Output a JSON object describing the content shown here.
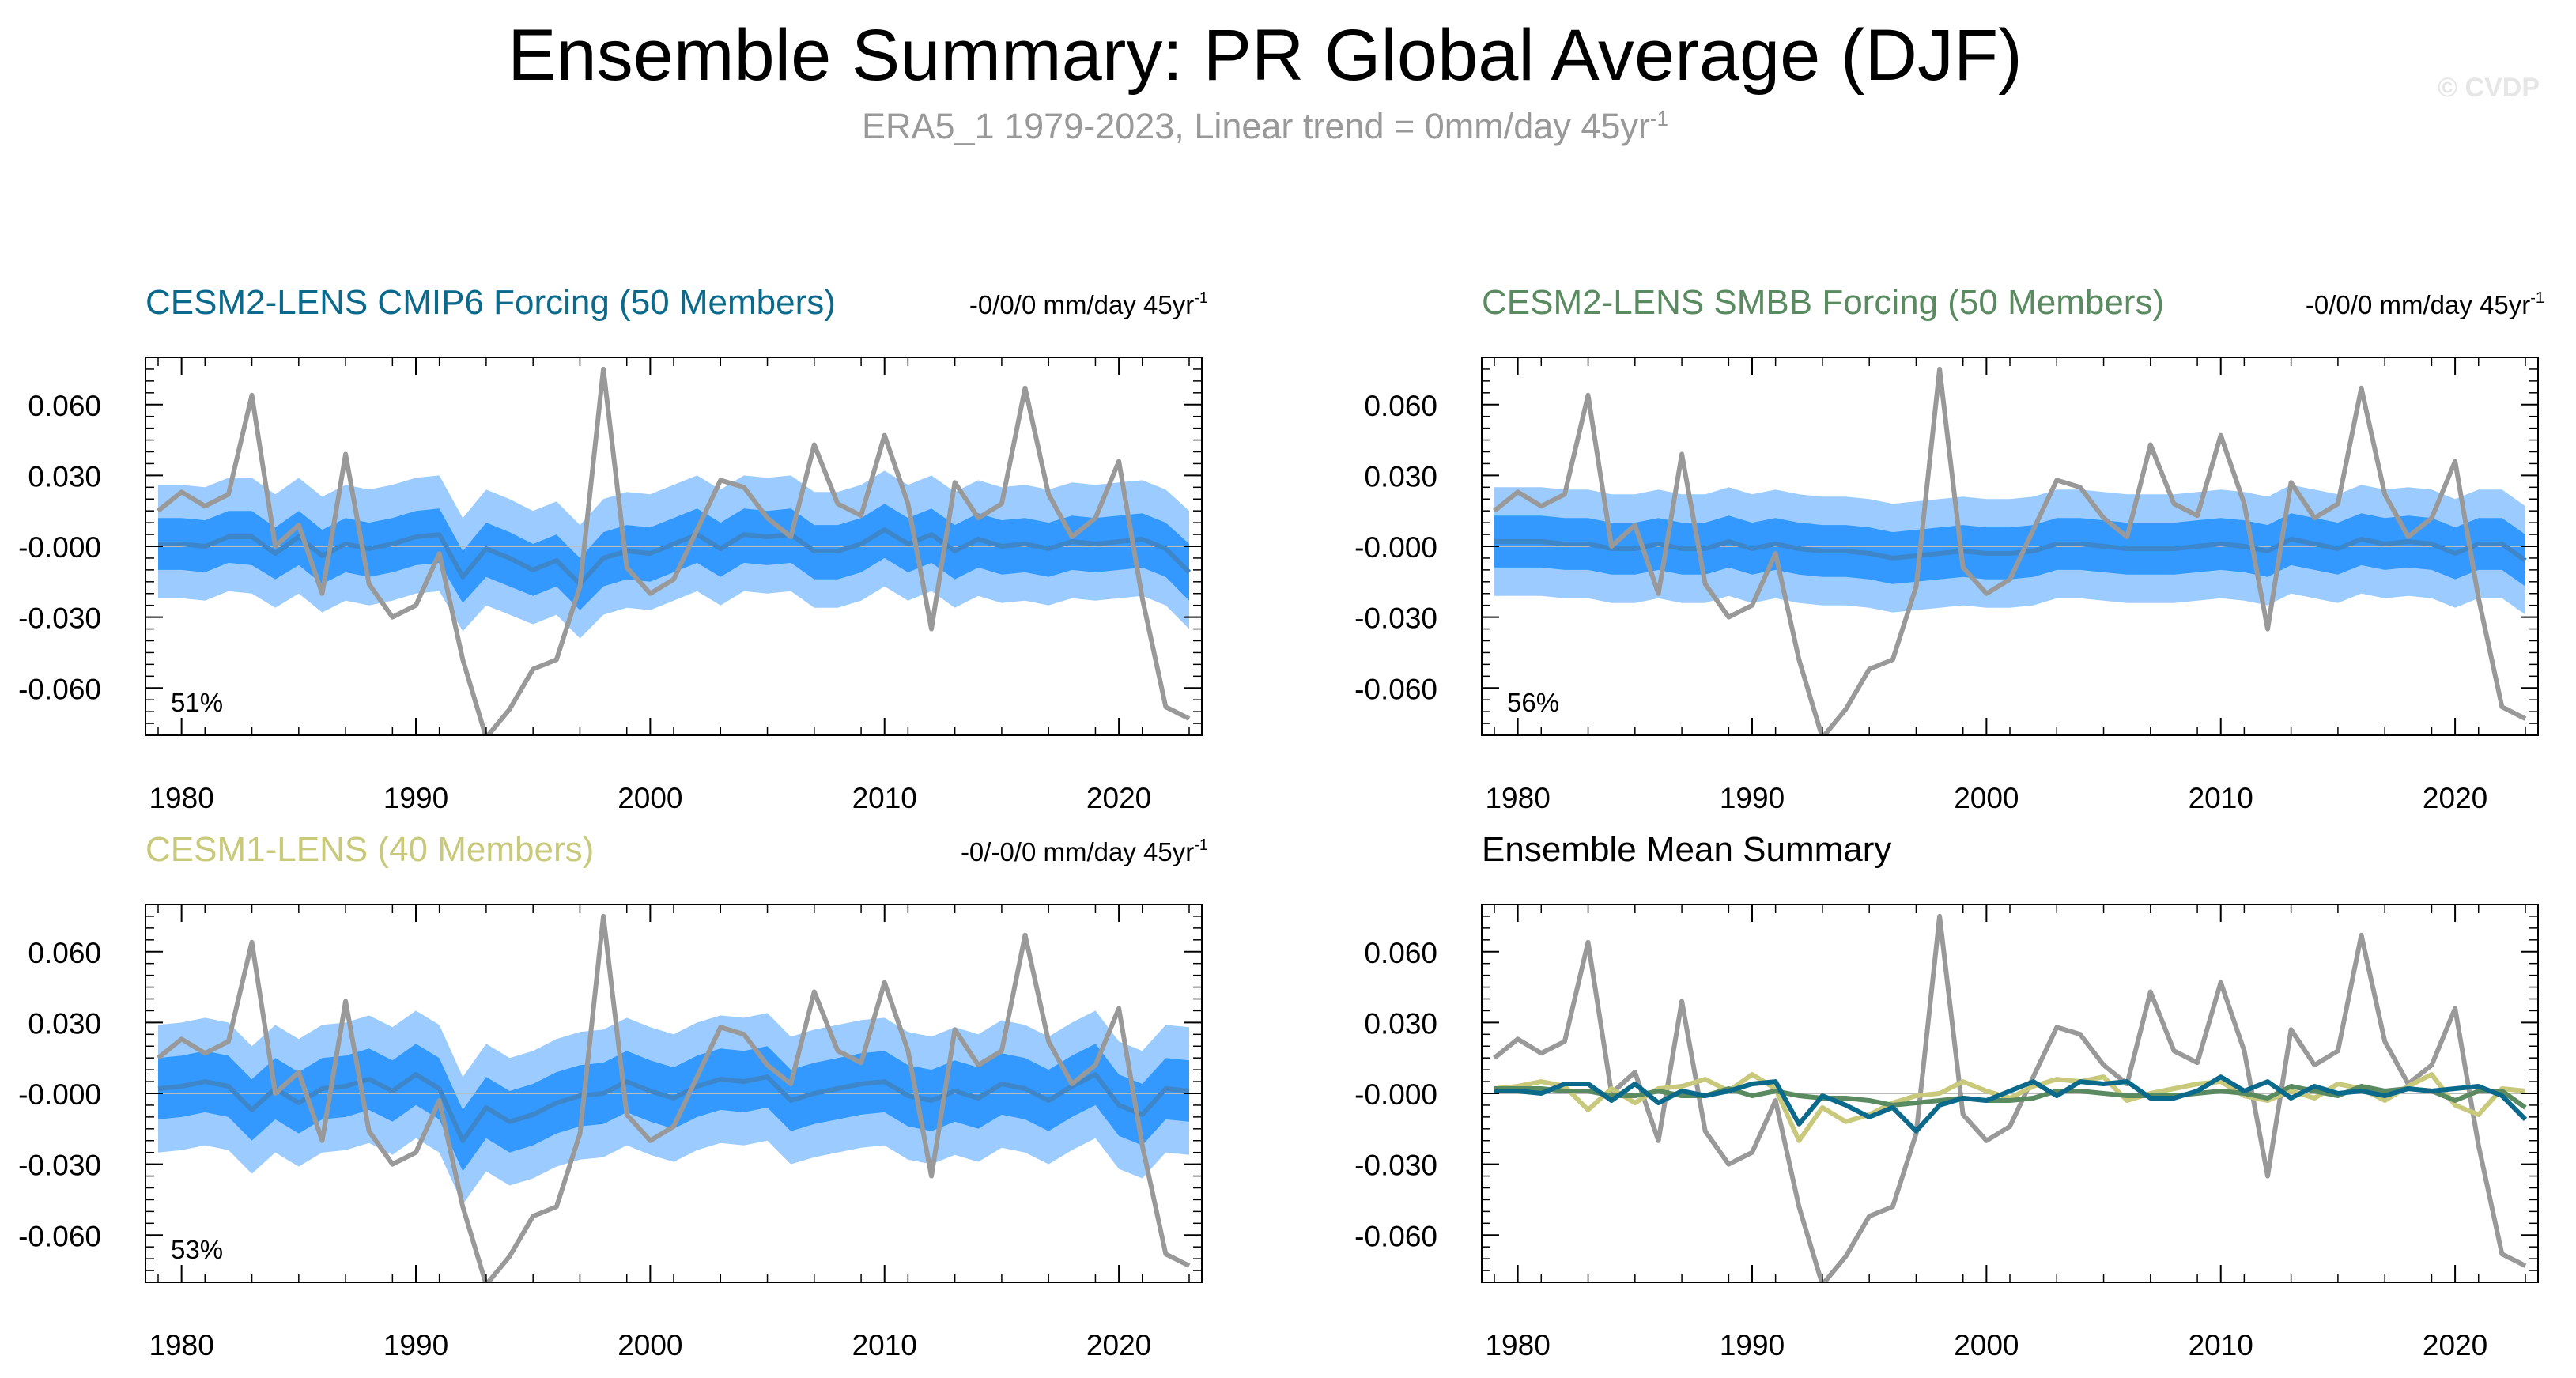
{
  "title": "Ensemble Summary: PR Global Average (DJF)",
  "subtitle": "ERA5_1 1979-2023, Linear trend = 0mm/day 45yr",
  "subtitle_sup": "-1",
  "watermark": "© CVDP",
  "colors": {
    "obs": "#999999",
    "band_outer": "#9cccff",
    "band_inner": "#3399ff",
    "cmip6": "#0b6a8c",
    "smbb": "#5a8a60",
    "lens1": "#c9c97c",
    "mean_line": "#3d86c9",
    "zero_line": "#bbbbbb"
  },
  "panels": [
    {
      "title": "CESM2-LENS CMIP6 Forcing (50 Members)",
      "title_color": "#0b6a8c",
      "trend": "-0/0/0 mm/day 45yr",
      "trend_sup": "-1",
      "pct": "51%"
    },
    {
      "title": "CESM2-LENS SMBB Forcing (50 Members)",
      "title_color": "#5a8a60",
      "trend": "-0/0/0 mm/day 45yr",
      "trend_sup": "-1",
      "pct": "56%"
    },
    {
      "title": "CESM1-LENS (40 Members)",
      "title_color": "#c9c97c",
      "trend": "-0/-0/0 mm/day 45yr",
      "trend_sup": "-1",
      "pct": "53%"
    },
    {
      "title": "Ensemble Mean Summary",
      "title_color": "#000000",
      "trend": "",
      "trend_sup": "",
      "pct": ""
    }
  ],
  "chart_data": {
    "type": "line",
    "x_ticklabels": [
      "1980",
      "1990",
      "2000",
      "2010",
      "2020"
    ],
    "y_ticklabels": [
      "0.060",
      "0.030",
      "-0.000",
      "-0.030",
      "-0.060"
    ],
    "xlim": [
      1979,
      2023
    ],
    "ylim": [
      -0.08,
      0.08
    ],
    "yticks": [
      0.06,
      0.03,
      0.0,
      -0.03,
      -0.06
    ],
    "xticks": [
      1980,
      1990,
      2000,
      2010,
      2020
    ],
    "grid": false,
    "x": [
      1979,
      1980,
      1981,
      1982,
      1983,
      1984,
      1985,
      1986,
      1987,
      1988,
      1989,
      1990,
      1991,
      1992,
      1993,
      1994,
      1995,
      1996,
      1997,
      1998,
      1999,
      2000,
      2001,
      2002,
      2003,
      2004,
      2005,
      2006,
      2007,
      2008,
      2009,
      2010,
      2011,
      2012,
      2013,
      2014,
      2015,
      2016,
      2017,
      2018,
      2019,
      2020,
      2021,
      2022,
      2023
    ],
    "observed": {
      "name": "ERA5_1",
      "values": [
        0.015,
        0.023,
        0.017,
        0.022,
        0.064,
        0.0,
        0.009,
        -0.02,
        0.039,
        -0.016,
        -0.03,
        -0.025,
        -0.003,
        -0.048,
        -0.081,
        -0.069,
        -0.052,
        -0.048,
        -0.017,
        0.075,
        -0.009,
        -0.02,
        -0.014,
        0.007,
        0.028,
        0.025,
        0.012,
        0.004,
        0.043,
        0.018,
        0.013,
        0.047,
        0.018,
        -0.035,
        0.027,
        0.012,
        0.018,
        0.067,
        0.022,
        0.004,
        0.012,
        0.036,
        -0.022,
        -0.068,
        -0.073
      ]
    },
    "ensemble_means": [
      {
        "name": "CESM2-LENS CMIP6 Forcing",
        "values": [
          0.001,
          0.001,
          0.0,
          0.004,
          0.004,
          -0.003,
          0.004,
          -0.004,
          0.001,
          -0.001,
          0.001,
          0.004,
          0.005,
          -0.013,
          -0.001,
          -0.005,
          -0.01,
          -0.006,
          -0.016,
          -0.005,
          -0.002,
          -0.003,
          0.001,
          0.005,
          -0.001,
          0.005,
          0.004,
          0.005,
          -0.002,
          -0.002,
          0.001,
          0.007,
          0.001,
          0.005,
          -0.002,
          0.003,
          0.0,
          0.001,
          -0.001,
          0.002,
          0.001,
          0.002,
          0.003,
          -0.001,
          -0.011
        ]
      },
      {
        "name": "CESM2-LENS SMBB Forcing",
        "values": [
          0.002,
          0.002,
          0.002,
          0.001,
          0.001,
          -0.001,
          -0.001,
          0.001,
          -0.001,
          -0.001,
          0.002,
          -0.001,
          0.001,
          -0.001,
          -0.002,
          -0.002,
          -0.003,
          -0.005,
          -0.004,
          -0.003,
          -0.002,
          -0.003,
          -0.003,
          -0.002,
          0.001,
          0.001,
          0.0,
          -0.001,
          -0.001,
          -0.001,
          0.0,
          0.001,
          0.0,
          -0.002,
          0.003,
          0.001,
          -0.001,
          0.003,
          0.001,
          0.002,
          0.001,
          -0.003,
          0.001,
          0.001,
          -0.006
        ]
      },
      {
        "name": "CESM1-LENS",
        "values": [
          0.002,
          0.003,
          0.005,
          0.003,
          -0.007,
          0.002,
          -0.004,
          0.002,
          0.003,
          0.006,
          0.001,
          0.008,
          0.002,
          -0.02,
          -0.006,
          -0.012,
          -0.009,
          -0.004,
          -0.001,
          0.0,
          0.005,
          0.001,
          -0.002,
          0.003,
          0.006,
          0.005,
          0.007,
          -0.003,
          0.0,
          0.002,
          0.004,
          0.005,
          -0.001,
          -0.003,
          0.001,
          -0.002,
          0.004,
          0.002,
          -0.003,
          0.003,
          0.008,
          -0.005,
          -0.009,
          0.002,
          0.001
        ]
      }
    ],
    "ensemble_spread": [
      {
        "name": "CESM2-LENS CMIP6 Forcing",
        "p10": [
          -0.01,
          -0.01,
          -0.011,
          -0.007,
          -0.008,
          -0.014,
          -0.008,
          -0.016,
          -0.011,
          -0.013,
          -0.011,
          -0.008,
          -0.007,
          -0.024,
          -0.013,
          -0.017,
          -0.021,
          -0.017,
          -0.027,
          -0.017,
          -0.014,
          -0.015,
          -0.011,
          -0.007,
          -0.013,
          -0.007,
          -0.008,
          -0.007,
          -0.014,
          -0.014,
          -0.011,
          -0.005,
          -0.011,
          -0.007,
          -0.014,
          -0.009,
          -0.012,
          -0.011,
          -0.013,
          -0.01,
          -0.011,
          -0.01,
          -0.009,
          -0.013,
          -0.023
        ],
        "p90": [
          0.012,
          0.012,
          0.011,
          0.015,
          0.015,
          0.008,
          0.015,
          0.007,
          0.012,
          0.01,
          0.012,
          0.015,
          0.016,
          -0.002,
          0.01,
          0.006,
          0.001,
          0.005,
          -0.005,
          0.006,
          0.009,
          0.008,
          0.012,
          0.016,
          0.01,
          0.016,
          0.015,
          0.016,
          0.009,
          0.009,
          0.012,
          0.018,
          0.012,
          0.016,
          0.009,
          0.014,
          0.011,
          0.012,
          0.01,
          0.013,
          0.012,
          0.013,
          0.014,
          0.01,
          0.001
        ],
        "min": [
          -0.022,
          -0.022,
          -0.023,
          -0.019,
          -0.02,
          -0.026,
          -0.02,
          -0.028,
          -0.023,
          -0.025,
          -0.023,
          -0.02,
          -0.019,
          -0.036,
          -0.025,
          -0.029,
          -0.033,
          -0.029,
          -0.039,
          -0.029,
          -0.026,
          -0.027,
          -0.023,
          -0.019,
          -0.025,
          -0.019,
          -0.02,
          -0.019,
          -0.026,
          -0.026,
          -0.023,
          -0.017,
          -0.023,
          -0.019,
          -0.026,
          -0.021,
          -0.024,
          -0.023,
          -0.025,
          -0.022,
          -0.023,
          -0.022,
          -0.021,
          -0.025,
          -0.035
        ],
        "max": [
          0.026,
          0.026,
          0.025,
          0.029,
          0.029,
          0.022,
          0.029,
          0.021,
          0.026,
          0.024,
          0.026,
          0.029,
          0.03,
          0.012,
          0.024,
          0.02,
          0.015,
          0.019,
          0.009,
          0.02,
          0.023,
          0.022,
          0.026,
          0.03,
          0.024,
          0.03,
          0.029,
          0.03,
          0.023,
          0.023,
          0.026,
          0.032,
          0.026,
          0.03,
          0.023,
          0.028,
          0.025,
          0.026,
          0.024,
          0.027,
          0.026,
          0.027,
          0.028,
          0.024,
          0.015
        ]
      },
      {
        "name": "CESM2-LENS SMBB Forcing",
        "p10": [
          -0.009,
          -0.009,
          -0.009,
          -0.01,
          -0.01,
          -0.012,
          -0.012,
          -0.01,
          -0.012,
          -0.012,
          -0.009,
          -0.012,
          -0.01,
          -0.012,
          -0.013,
          -0.013,
          -0.014,
          -0.016,
          -0.015,
          -0.014,
          -0.013,
          -0.014,
          -0.014,
          -0.013,
          -0.01,
          -0.01,
          -0.011,
          -0.012,
          -0.012,
          -0.012,
          -0.011,
          -0.01,
          -0.011,
          -0.013,
          -0.008,
          -0.01,
          -0.012,
          -0.008,
          -0.01,
          -0.009,
          -0.01,
          -0.014,
          -0.01,
          -0.01,
          -0.017
        ],
        "p90": [
          0.013,
          0.013,
          0.013,
          0.012,
          0.012,
          0.01,
          0.01,
          0.012,
          0.01,
          0.01,
          0.013,
          0.01,
          0.012,
          0.01,
          0.009,
          0.009,
          0.008,
          0.006,
          0.007,
          0.008,
          0.009,
          0.008,
          0.008,
          0.009,
          0.012,
          0.012,
          0.011,
          0.01,
          0.01,
          0.01,
          0.011,
          0.012,
          0.011,
          0.009,
          0.014,
          0.012,
          0.01,
          0.014,
          0.012,
          0.013,
          0.012,
          0.008,
          0.012,
          0.012,
          0.005
        ],
        "min": [
          -0.021,
          -0.021,
          -0.021,
          -0.022,
          -0.022,
          -0.024,
          -0.024,
          -0.022,
          -0.024,
          -0.024,
          -0.021,
          -0.024,
          -0.022,
          -0.024,
          -0.025,
          -0.025,
          -0.026,
          -0.028,
          -0.027,
          -0.026,
          -0.025,
          -0.026,
          -0.026,
          -0.025,
          -0.022,
          -0.022,
          -0.023,
          -0.024,
          -0.024,
          -0.024,
          -0.023,
          -0.022,
          -0.023,
          -0.025,
          -0.02,
          -0.022,
          -0.024,
          -0.02,
          -0.022,
          -0.021,
          -0.022,
          -0.026,
          -0.022,
          -0.022,
          -0.029
        ],
        "max": [
          0.025,
          0.025,
          0.025,
          0.024,
          0.024,
          0.022,
          0.022,
          0.024,
          0.022,
          0.022,
          0.025,
          0.022,
          0.024,
          0.022,
          0.021,
          0.021,
          0.02,
          0.018,
          0.019,
          0.02,
          0.021,
          0.02,
          0.02,
          0.021,
          0.024,
          0.024,
          0.023,
          0.022,
          0.022,
          0.022,
          0.023,
          0.024,
          0.023,
          0.021,
          0.026,
          0.024,
          0.022,
          0.026,
          0.024,
          0.025,
          0.024,
          0.02,
          0.024,
          0.024,
          0.017
        ]
      },
      {
        "name": "CESM1-LENS",
        "p10": [
          -0.011,
          -0.01,
          -0.008,
          -0.01,
          -0.02,
          -0.011,
          -0.017,
          -0.011,
          -0.01,
          -0.007,
          -0.012,
          -0.005,
          -0.011,
          -0.033,
          -0.019,
          -0.025,
          -0.022,
          -0.017,
          -0.014,
          -0.013,
          -0.008,
          -0.012,
          -0.015,
          -0.01,
          -0.007,
          -0.008,
          -0.006,
          -0.016,
          -0.013,
          -0.011,
          -0.009,
          -0.008,
          -0.014,
          -0.016,
          -0.012,
          -0.015,
          -0.009,
          -0.011,
          -0.016,
          -0.01,
          -0.005,
          -0.018,
          -0.022,
          -0.011,
          -0.012
        ],
        "p90": [
          0.015,
          0.016,
          0.018,
          0.016,
          0.006,
          0.015,
          0.009,
          0.015,
          0.016,
          0.019,
          0.014,
          0.021,
          0.015,
          -0.007,
          0.007,
          0.001,
          0.004,
          0.009,
          0.012,
          0.013,
          0.018,
          0.014,
          0.011,
          0.016,
          0.019,
          0.018,
          0.02,
          0.01,
          0.013,
          0.015,
          0.017,
          0.018,
          0.012,
          0.01,
          0.014,
          0.011,
          0.017,
          0.015,
          0.01,
          0.016,
          0.021,
          0.008,
          0.004,
          0.015,
          0.014
        ],
        "min": [
          -0.025,
          -0.024,
          -0.022,
          -0.024,
          -0.034,
          -0.025,
          -0.031,
          -0.025,
          -0.024,
          -0.021,
          -0.026,
          -0.019,
          -0.025,
          -0.047,
          -0.033,
          -0.039,
          -0.036,
          -0.031,
          -0.028,
          -0.027,
          -0.022,
          -0.026,
          -0.029,
          -0.024,
          -0.021,
          -0.022,
          -0.02,
          -0.03,
          -0.027,
          -0.025,
          -0.023,
          -0.022,
          -0.028,
          -0.03,
          -0.026,
          -0.029,
          -0.023,
          -0.025,
          -0.03,
          -0.024,
          -0.019,
          -0.032,
          -0.036,
          -0.025,
          -0.026
        ],
        "max": [
          0.029,
          0.03,
          0.032,
          0.03,
          0.02,
          0.029,
          0.023,
          0.029,
          0.03,
          0.033,
          0.028,
          0.035,
          0.029,
          0.007,
          0.021,
          0.015,
          0.018,
          0.023,
          0.026,
          0.027,
          0.032,
          0.028,
          0.025,
          0.03,
          0.033,
          0.032,
          0.034,
          0.024,
          0.027,
          0.029,
          0.031,
          0.032,
          0.026,
          0.024,
          0.028,
          0.025,
          0.031,
          0.029,
          0.024,
          0.03,
          0.035,
          0.022,
          0.018,
          0.029,
          0.028
        ]
      }
    ]
  }
}
